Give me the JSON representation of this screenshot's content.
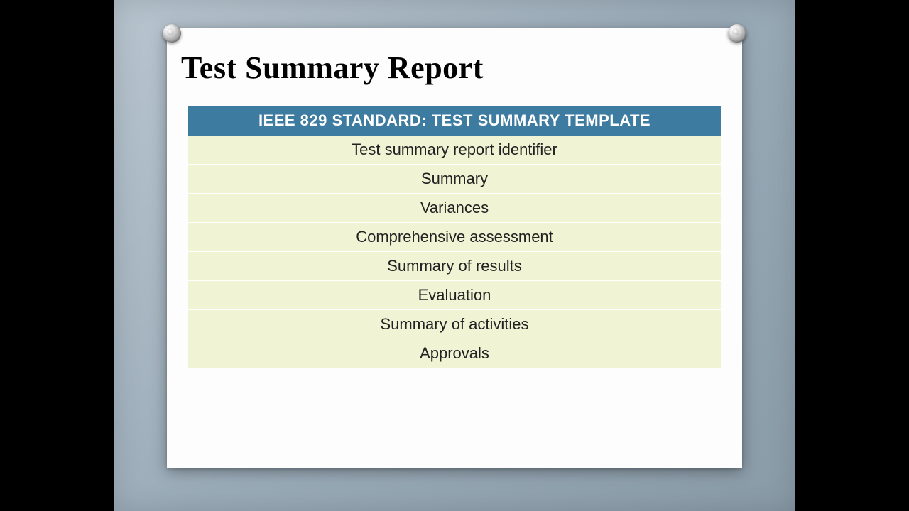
{
  "slide": {
    "title": "Test Summary Report",
    "table": {
      "type": "table",
      "header": "IEEE 829 STANDARD: TEST SUMMARY TEMPLATE",
      "rows": [
        "Test summary report identifier",
        "Summary",
        "Variances",
        "Comprehensive assessment",
        "Summary of results",
        "Evaluation",
        "Summary of activities",
        "Approvals"
      ],
      "header_bg": "#3d7ba0",
      "header_text_color": "#ffffff",
      "row_bg": "#f0f4d4",
      "row_text_color": "#222222",
      "header_fontsize": 22,
      "row_fontsize": 22
    },
    "background_gradient": [
      "#b8c5cf",
      "#8a9ba8"
    ],
    "paper_color": "#fdfdfd",
    "letterbox_color": "#000000",
    "title_fontsize": 44,
    "title_color": "#000000"
  }
}
